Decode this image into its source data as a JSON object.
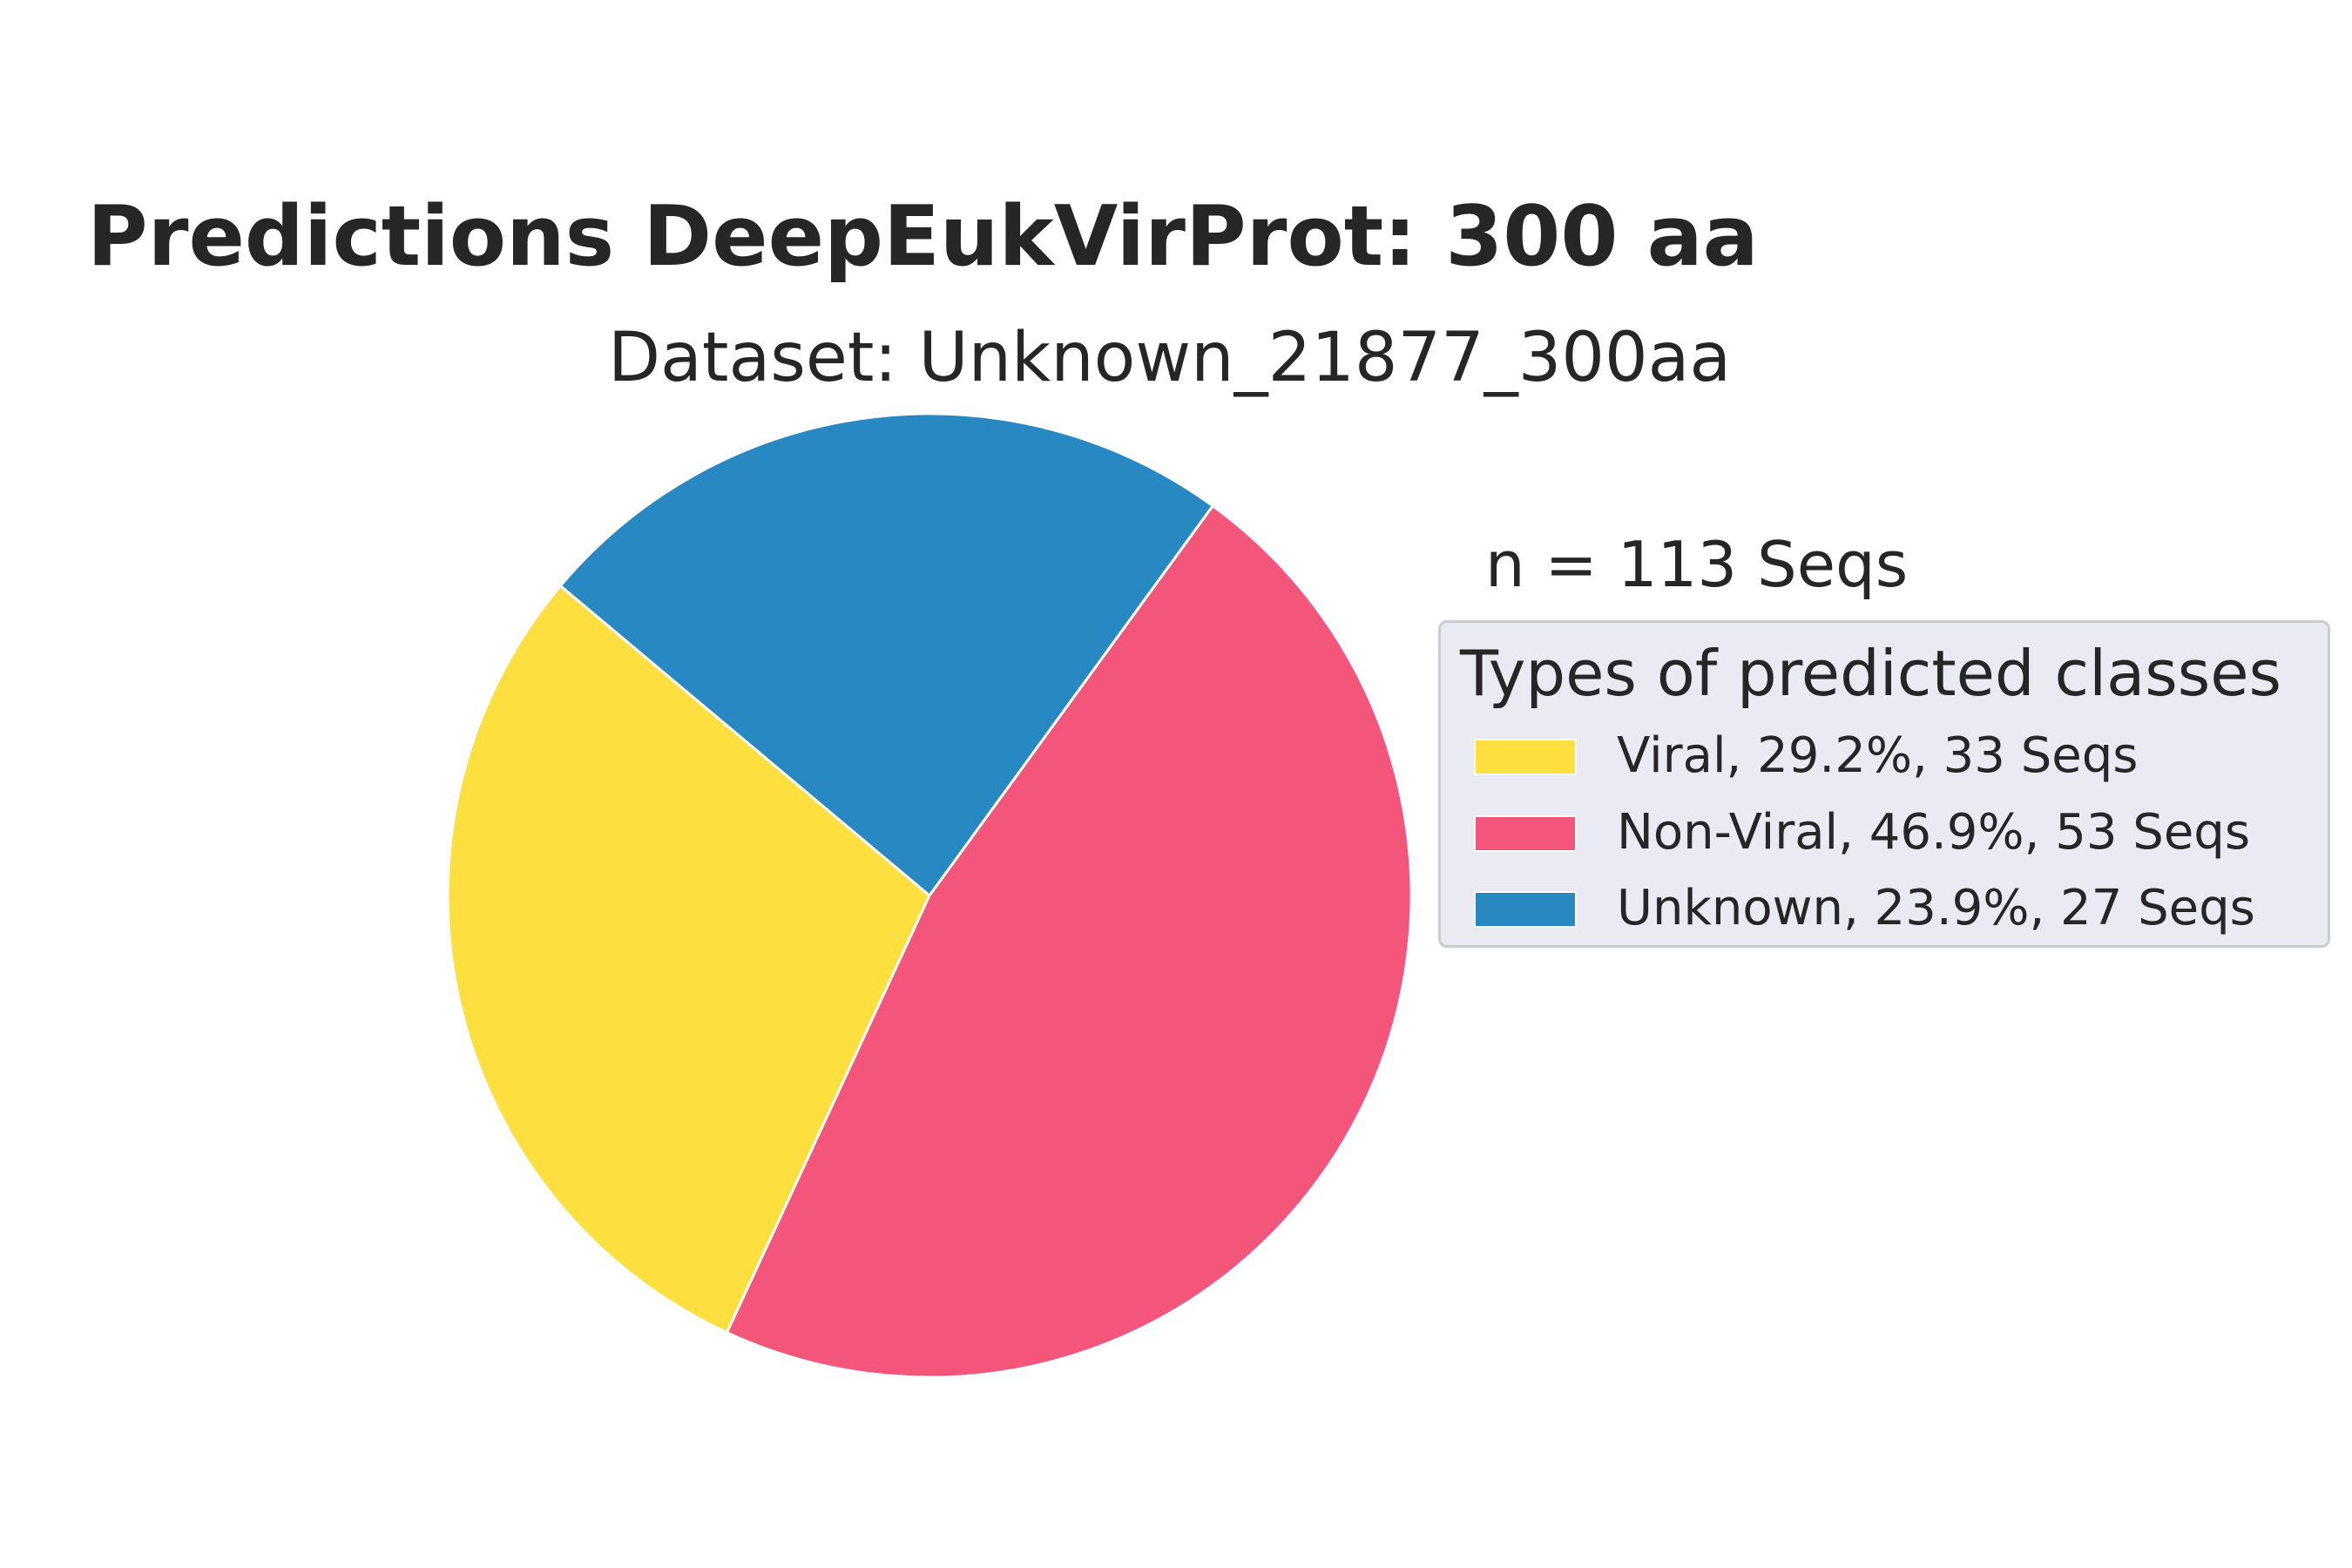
{
  "chart_data": {
    "type": "pie",
    "title": "Predictions DeepEukVirProt: 300 aa",
    "subtitle": "Dataset: Unknown_21877_300aa",
    "annotation": "n = 113 Seqs",
    "start_angle_deg": 140,
    "direction": "counterclockwise",
    "legend": {
      "title": "Types of predicted classes",
      "placement": "right"
    },
    "slices": [
      {
        "label": "Viral, 29.2%, 33 Seqs",
        "category": "Viral",
        "value": 33,
        "percent": 29.2,
        "color": "#fde040"
      },
      {
        "label": "Non-Viral, 46.9%, 53 Seqs",
        "category": "Non-Viral",
        "value": 53,
        "percent": 46.9,
        "color": "#f4557a"
      },
      {
        "label": "Unknown, 23.9%, 27 Seqs",
        "category": "Unknown",
        "value": 27,
        "percent": 23.9,
        "color": "#2888c2"
      }
    ]
  }
}
